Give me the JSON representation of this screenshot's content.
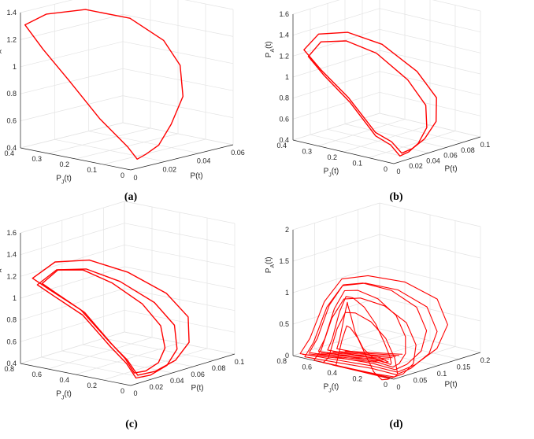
{
  "chart_data": [
    {
      "type": "line",
      "panel": "(a)",
      "xlabel": "P(t)",
      "ylabel": "P_J(t)",
      "zlabel": "P_A(t)",
      "xticks": [
        "0",
        "0.02",
        "0.04",
        "0.06"
      ],
      "yticks": [
        "0",
        "0.1",
        "0.2",
        "0.3",
        "0.4"
      ],
      "zticks": [
        "0.4",
        "0.6",
        "0.8",
        "1",
        "1.2",
        "1.4"
      ],
      "xlim": [
        0,
        0.06
      ],
      "ylim": [
        0,
        0.4
      ],
      "zlim": [
        0.4,
        1.4
      ],
      "grid": true,
      "series": [
        {
          "loops": 1,
          "points": [
            [
              0.001,
              0.39,
              1.31
            ],
            [
              0.012,
              0.38,
              1.36
            ],
            [
              0.03,
              0.35,
              1.35
            ],
            [
              0.048,
              0.3,
              1.25
            ],
            [
              0.058,
              0.24,
              1.08
            ],
            [
              0.058,
              0.18,
              0.92
            ],
            [
              0.05,
              0.12,
              0.74
            ],
            [
              0.035,
              0.07,
              0.6
            ],
            [
              0.022,
              0.035,
              0.5
            ],
            [
              0.012,
              0.02,
              0.47
            ],
            [
              0.007,
              0.02,
              0.45
            ],
            [
              0.008,
              0.06,
              0.52
            ],
            [
              0.006,
              0.15,
              0.7
            ],
            [
              0.004,
              0.25,
              0.95
            ],
            [
              0.002,
              0.33,
              1.15
            ],
            [
              0.001,
              0.39,
              1.31
            ]
          ]
        }
      ]
    },
    {
      "type": "line",
      "panel": "(b)",
      "xlabel": "P(t)",
      "ylabel": "P_J(t)",
      "zlabel": "P_A(t)",
      "xticks": [
        "0",
        "0.02",
        "0.04",
        "0.06",
        "0.08",
        "0.1"
      ],
      "yticks": [
        "0",
        "0.1",
        "0.2",
        "0.3",
        "0.4"
      ],
      "zticks": [
        "0.4",
        "0.6",
        "0.8",
        "1",
        "1.2",
        "1.4",
        "1.6"
      ],
      "xlim": [
        0,
        0.1
      ],
      "ylim": [
        0,
        0.4
      ],
      "zlim": [
        0.4,
        1.6
      ],
      "grid": true,
      "series": [
        {
          "loops": 2,
          "points": [
            [
              0.001,
              0.36,
              1.28
            ],
            [
              0.015,
              0.35,
              1.4
            ],
            [
              0.04,
              0.32,
              1.37
            ],
            [
              0.065,
              0.27,
              1.22
            ],
            [
              0.085,
              0.2,
              0.95
            ],
            [
              0.09,
              0.14,
              0.72
            ],
            [
              0.075,
              0.09,
              0.56
            ],
            [
              0.05,
              0.05,
              0.48
            ],
            [
              0.03,
              0.03,
              0.45
            ],
            [
              0.015,
              0.02,
              0.45
            ],
            [
              0.012,
              0.05,
              0.55
            ],
            [
              0.008,
              0.1,
              0.62
            ],
            [
              0.006,
              0.2,
              0.9
            ],
            [
              0.003,
              0.3,
              1.12
            ],
            [
              0.001,
              0.36,
              1.28
            ]
          ]
        }
      ]
    },
    {
      "type": "line",
      "panel": "(c)",
      "xlabel": "P(t)",
      "ylabel": "P_J(t)",
      "zlabel": "P_A(t)",
      "xticks": [
        "0",
        "0.02",
        "0.04",
        "0.06",
        "0.08",
        "0.1"
      ],
      "yticks": [
        "0",
        "0.2",
        "0.4",
        "0.6",
        "0.8"
      ],
      "zticks": [
        "0.4",
        "0.6",
        "0.8",
        "1",
        "1.2",
        "1.4",
        "1.6"
      ],
      "xlim": [
        0,
        0.1
      ],
      "ylim": [
        0,
        0.8
      ],
      "zlim": [
        0.4,
        1.6
      ],
      "grid": true,
      "series": [
        {
          "loops": 3,
          "points": [
            [
              0.001,
              0.72,
              1.2
            ],
            [
              0.02,
              0.7,
              1.3
            ],
            [
              0.045,
              0.64,
              1.26
            ],
            [
              0.07,
              0.55,
              1.1
            ],
            [
              0.09,
              0.42,
              0.88
            ],
            [
              0.095,
              0.3,
              0.68
            ],
            [
              0.08,
              0.18,
              0.52
            ],
            [
              0.055,
              0.09,
              0.45
            ],
            [
              0.03,
              0.05,
              0.43
            ],
            [
              0.012,
              0.04,
              0.45
            ],
            [
              0.01,
              0.1,
              0.58
            ],
            [
              0.007,
              0.2,
              0.72
            ],
            [
              0.005,
              0.4,
              0.98
            ],
            [
              0.002,
              0.6,
              1.12
            ],
            [
              0.001,
              0.72,
              1.2
            ]
          ]
        }
      ]
    },
    {
      "type": "line",
      "panel": "(d)",
      "xlabel": "P(t)",
      "ylabel": "P_J(t)",
      "zlabel": "P_A(t)",
      "xticks": [
        "0",
        "0.05",
        "0.1",
        "0.15",
        "0.2"
      ],
      "yticks": [
        "0",
        "0.2",
        "0.4",
        "0.6",
        "0.8"
      ],
      "zticks": [
        "0",
        "0.5",
        "1",
        "1.5",
        "2"
      ],
      "xlim": [
        0,
        0.2
      ],
      "ylim": [
        0,
        0.8
      ],
      "zlim": [
        0,
        2
      ],
      "grid": true,
      "series": [
        {
          "loops": 9,
          "points": [
            [
              0.002,
              0.75,
              0.05
            ],
            [
              0.01,
              0.7,
              0.3
            ],
            [
              0.02,
              0.62,
              0.9
            ],
            [
              0.04,
              0.55,
              1.25
            ],
            [
              0.08,
              0.48,
              1.25
            ],
            [
              0.13,
              0.36,
              1.1
            ],
            [
              0.17,
              0.24,
              0.8
            ],
            [
              0.165,
              0.14,
              0.45
            ],
            [
              0.12,
              0.07,
              0.2
            ],
            [
              0.06,
              0.04,
              0.08
            ],
            [
              0.02,
              0.04,
              0.05
            ],
            [
              0.008,
              0.2,
              0.1
            ],
            [
              0.004,
              0.45,
              0.08
            ],
            [
              0.002,
              0.75,
              0.05
            ]
          ]
        }
      ]
    }
  ]
}
